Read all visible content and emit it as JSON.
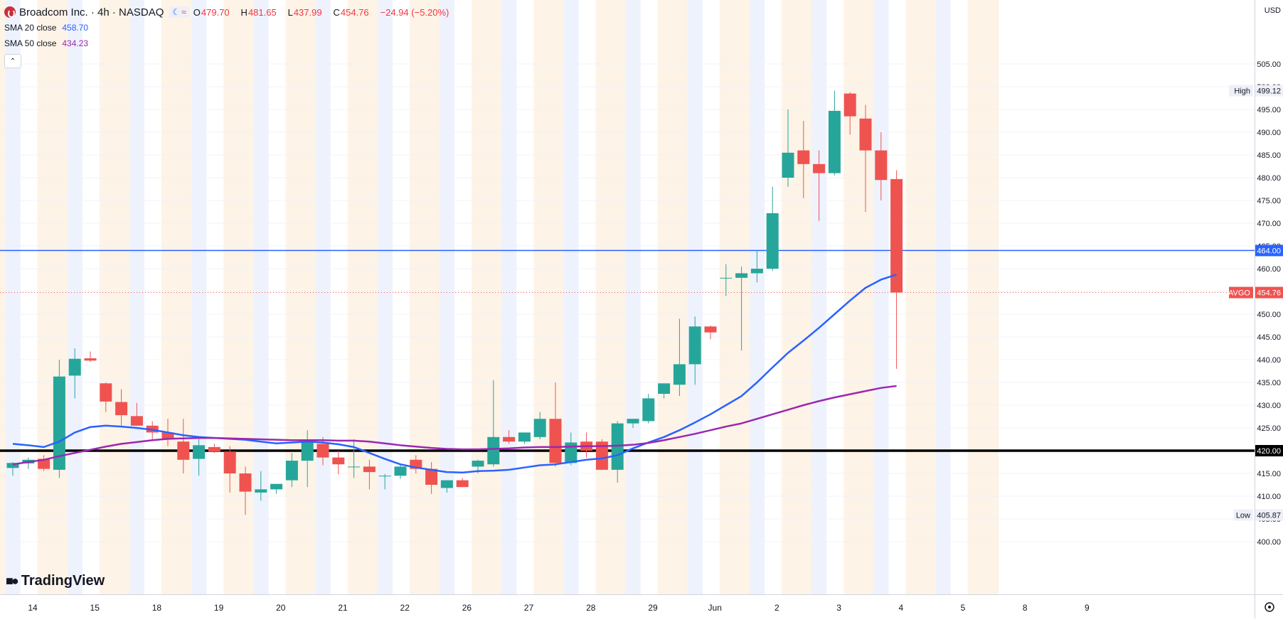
{
  "header": {
    "title": "Broadcom Inc. · 4h · NASDAQ",
    "ohlc": {
      "o_label": "O",
      "o": "479.70",
      "h_label": "H",
      "h": "481.65",
      "l_label": "L",
      "l": "437.99",
      "c_label": "C",
      "c": "454.76",
      "change": "−24.94 (−5.20%)"
    },
    "sma20_label": "SMA 20 close",
    "sma20_value": "458.70",
    "sma50_label": "SMA 50 close",
    "sma50_value": "434.23",
    "collapse_glyph": "⌃"
  },
  "currency": "USD",
  "branding": "TradingView",
  "colors": {
    "up": "#26a69a",
    "down": "#ef5350",
    "sma20": "#2962ff",
    "sma50": "#9c27b0",
    "hline_blue": "#2962ff",
    "hline_black": "#000000",
    "session_blue": "#eef2fd",
    "session_orange": "#fdf3e6"
  },
  "icons": {
    "settings": "gear-icon",
    "symbol": "broadcom-logo-icon",
    "collapse": "chevron-up-icon"
  },
  "price_axis": {
    "ticks": [
      "505.00",
      "500.00",
      "495.00",
      "490.00",
      "485.00",
      "480.00",
      "475.00",
      "470.00",
      "465.00",
      "460.00",
      "455.00",
      "450.00",
      "445.00",
      "440.00",
      "435.00",
      "430.00",
      "425.00",
      "420.00",
      "415.00",
      "410.00",
      "405.00",
      "400.00"
    ],
    "high_label": "High",
    "high_value": "499.12",
    "low_label": "Low",
    "low_value": "405.87",
    "last_label": "AVGO",
    "last_value": "454.76",
    "hline_blue_value": "464.00",
    "hline_black_value": "420.00"
  },
  "time_axis": {
    "labels": [
      "14",
      "15",
      "18",
      "19",
      "20",
      "21",
      "22",
      "26",
      "27",
      "28",
      "29",
      "Jun",
      "2",
      "3",
      "4",
      "5",
      "8",
      "9"
    ]
  },
  "chart_data": {
    "type": "candlestick",
    "symbol": "AVGO",
    "timeframe": "4h",
    "ylim": [
      398,
      506
    ],
    "candles": [
      {
        "o": 416.2,
        "h": 417.5,
        "l": 414.5,
        "c": 417.3
      },
      {
        "o": 417.2,
        "h": 418.5,
        "l": 416.0,
        "c": 418.0
      },
      {
        "o": 418.2,
        "h": 419.0,
        "l": 415.5,
        "c": 416.0
      },
      {
        "o": 415.8,
        "h": 440.0,
        "l": 414.0,
        "c": 436.3
      },
      {
        "o": 436.5,
        "h": 442.5,
        "l": 431.5,
        "c": 440.2
      },
      {
        "o": 440.3,
        "h": 441.8,
        "l": 439.5,
        "c": 439.8
      },
      {
        "o": 434.8,
        "h": 435.0,
        "l": 428.5,
        "c": 430.8
      },
      {
        "o": 430.7,
        "h": 433.5,
        "l": 425.5,
        "c": 427.8
      },
      {
        "o": 427.6,
        "h": 430.5,
        "l": 425.5,
        "c": 425.5
      },
      {
        "o": 425.5,
        "h": 426.5,
        "l": 422.5,
        "c": 424.0
      },
      {
        "o": 424.0,
        "h": 427.0,
        "l": 421.0,
        "c": 422.5
      },
      {
        "o": 422.0,
        "h": 427.0,
        "l": 415.0,
        "c": 418.0
      },
      {
        "o": 418.2,
        "h": 422.8,
        "l": 414.5,
        "c": 421.2
      },
      {
        "o": 420.8,
        "h": 421.5,
        "l": 419.5,
        "c": 419.8
      },
      {
        "o": 419.8,
        "h": 421.0,
        "l": 410.8,
        "c": 415.0
      },
      {
        "o": 415.0,
        "h": 416.5,
        "l": 405.9,
        "c": 411.0
      },
      {
        "o": 410.8,
        "h": 415.5,
        "l": 409.0,
        "c": 411.5
      },
      {
        "o": 411.5,
        "h": 412.5,
        "l": 410.5,
        "c": 412.7
      },
      {
        "o": 413.5,
        "h": 419.5,
        "l": 412.0,
        "c": 417.8
      },
      {
        "o": 417.8,
        "h": 424.5,
        "l": 412.0,
        "c": 421.8
      },
      {
        "o": 421.5,
        "h": 423.0,
        "l": 416.8,
        "c": 418.5
      },
      {
        "o": 418.5,
        "h": 420.0,
        "l": 414.8,
        "c": 417.0
      },
      {
        "o": 416.5,
        "h": 422.5,
        "l": 414.0,
        "c": 416.5
      },
      {
        "o": 416.5,
        "h": 418.0,
        "l": 411.5,
        "c": 415.3
      },
      {
        "o": 414.5,
        "h": 414.9,
        "l": 411.5,
        "c": 414.5
      },
      {
        "o": 414.5,
        "h": 417.0,
        "l": 413.8,
        "c": 416.5
      },
      {
        "o": 418.0,
        "h": 419.0,
        "l": 415.0,
        "c": 416.0
      },
      {
        "o": 416.0,
        "h": 417.5,
        "l": 410.5,
        "c": 412.5
      },
      {
        "o": 411.8,
        "h": 413.5,
        "l": 410.8,
        "c": 413.5
      },
      {
        "o": 413.5,
        "h": 414.0,
        "l": 412.0,
        "c": 412.0
      },
      {
        "o": 416.5,
        "h": 418.0,
        "l": 415.0,
        "c": 417.8
      },
      {
        "o": 417.0,
        "h": 435.5,
        "l": 416.5,
        "c": 423.0
      },
      {
        "o": 423.0,
        "h": 424.5,
        "l": 421.5,
        "c": 422.0
      },
      {
        "o": 422.0,
        "h": 424.0,
        "l": 421.5,
        "c": 424.0
      },
      {
        "o": 423.0,
        "h": 428.5,
        "l": 422.5,
        "c": 427.0
      },
      {
        "o": 427.0,
        "h": 435.0,
        "l": 416.5,
        "c": 417.3
      },
      {
        "o": 417.3,
        "h": 424.0,
        "l": 416.8,
        "c": 421.8
      },
      {
        "o": 422.0,
        "h": 424.0,
        "l": 418.5,
        "c": 420.0
      },
      {
        "o": 422.0,
        "h": 422.5,
        "l": 415.8,
        "c": 415.8
      },
      {
        "o": 415.8,
        "h": 426.5,
        "l": 413.0,
        "c": 426.0
      },
      {
        "o": 426.0,
        "h": 427.0,
        "l": 425.0,
        "c": 427.0
      },
      {
        "o": 426.5,
        "h": 432.5,
        "l": 426.0,
        "c": 431.5
      },
      {
        "o": 432.5,
        "h": 434.5,
        "l": 431.5,
        "c": 434.8
      },
      {
        "o": 434.5,
        "h": 449.0,
        "l": 432.0,
        "c": 439.0
      },
      {
        "o": 439.0,
        "h": 449.5,
        "l": 434.5,
        "c": 447.3
      },
      {
        "o": 447.3,
        "h": 447.5,
        "l": 444.5,
        "c": 446.0
      },
      {
        "o": 458.0,
        "h": 461.0,
        "l": 454.0,
        "c": 458.0
      },
      {
        "o": 458.0,
        "h": 460.5,
        "l": 442.0,
        "c": 459.0
      },
      {
        "o": 459.0,
        "h": 464.0,
        "l": 457.0,
        "c": 460.0
      },
      {
        "o": 460.0,
        "h": 478.0,
        "l": 459.5,
        "c": 472.2
      },
      {
        "o": 480.0,
        "h": 495.0,
        "l": 478.0,
        "c": 485.5
      },
      {
        "o": 486.0,
        "h": 492.5,
        "l": 475.5,
        "c": 483.0
      },
      {
        "o": 483.0,
        "h": 486.0,
        "l": 470.5,
        "c": 481.0
      },
      {
        "o": 481.0,
        "h": 499.1,
        "l": 480.5,
        "c": 494.7
      },
      {
        "o": 498.5,
        "h": 498.8,
        "l": 489.5,
        "c": 493.5
      },
      {
        "o": 493.0,
        "h": 496.0,
        "l": 472.5,
        "c": 486.0
      },
      {
        "o": 486.0,
        "h": 490.0,
        "l": 475.0,
        "c": 479.5
      },
      {
        "o": 479.7,
        "h": 481.65,
        "l": 437.99,
        "c": 454.76
      }
    ],
    "sma20": [
      421.5,
      421.2,
      420.8,
      422.0,
      424.0,
      425.2,
      425.5,
      425.3,
      425.0,
      424.6,
      424.0,
      423.4,
      423.0,
      422.8,
      422.6,
      422.4,
      422.0,
      421.6,
      421.8,
      422.0,
      421.8,
      421.4,
      420.8,
      419.5,
      418.2,
      417.0,
      416.3,
      415.8,
      415.3,
      415.2,
      415.5,
      415.6,
      415.8,
      416.3,
      416.8,
      417.0,
      417.5,
      418.0,
      418.3,
      419.0,
      420.5,
      421.8,
      423.0,
      424.5,
      426.2,
      428.0,
      430.0,
      432.0,
      435.0,
      438.3,
      441.5,
      444.2,
      447.0,
      450.0,
      453.0,
      455.8,
      457.6,
      458.7
    ],
    "sma50": [
      417.0,
      417.5,
      418.0,
      418.8,
      419.5,
      420.2,
      420.9,
      421.5,
      421.9,
      422.3,
      422.6,
      422.7,
      422.8,
      422.8,
      422.7,
      422.6,
      422.5,
      422.4,
      422.3,
      422.3,
      422.3,
      422.2,
      422.2,
      422.0,
      421.6,
      421.2,
      420.9,
      420.6,
      420.4,
      420.3,
      420.3,
      420.4,
      420.5,
      420.7,
      420.8,
      420.8,
      420.9,
      421.0,
      421.0,
      421.1,
      421.3,
      421.7,
      422.3,
      423.0,
      423.7,
      424.5,
      425.3,
      426.0,
      427.0,
      428.0,
      429.0,
      430.0,
      430.9,
      431.7,
      432.4,
      433.1,
      433.8,
      434.23
    ]
  }
}
